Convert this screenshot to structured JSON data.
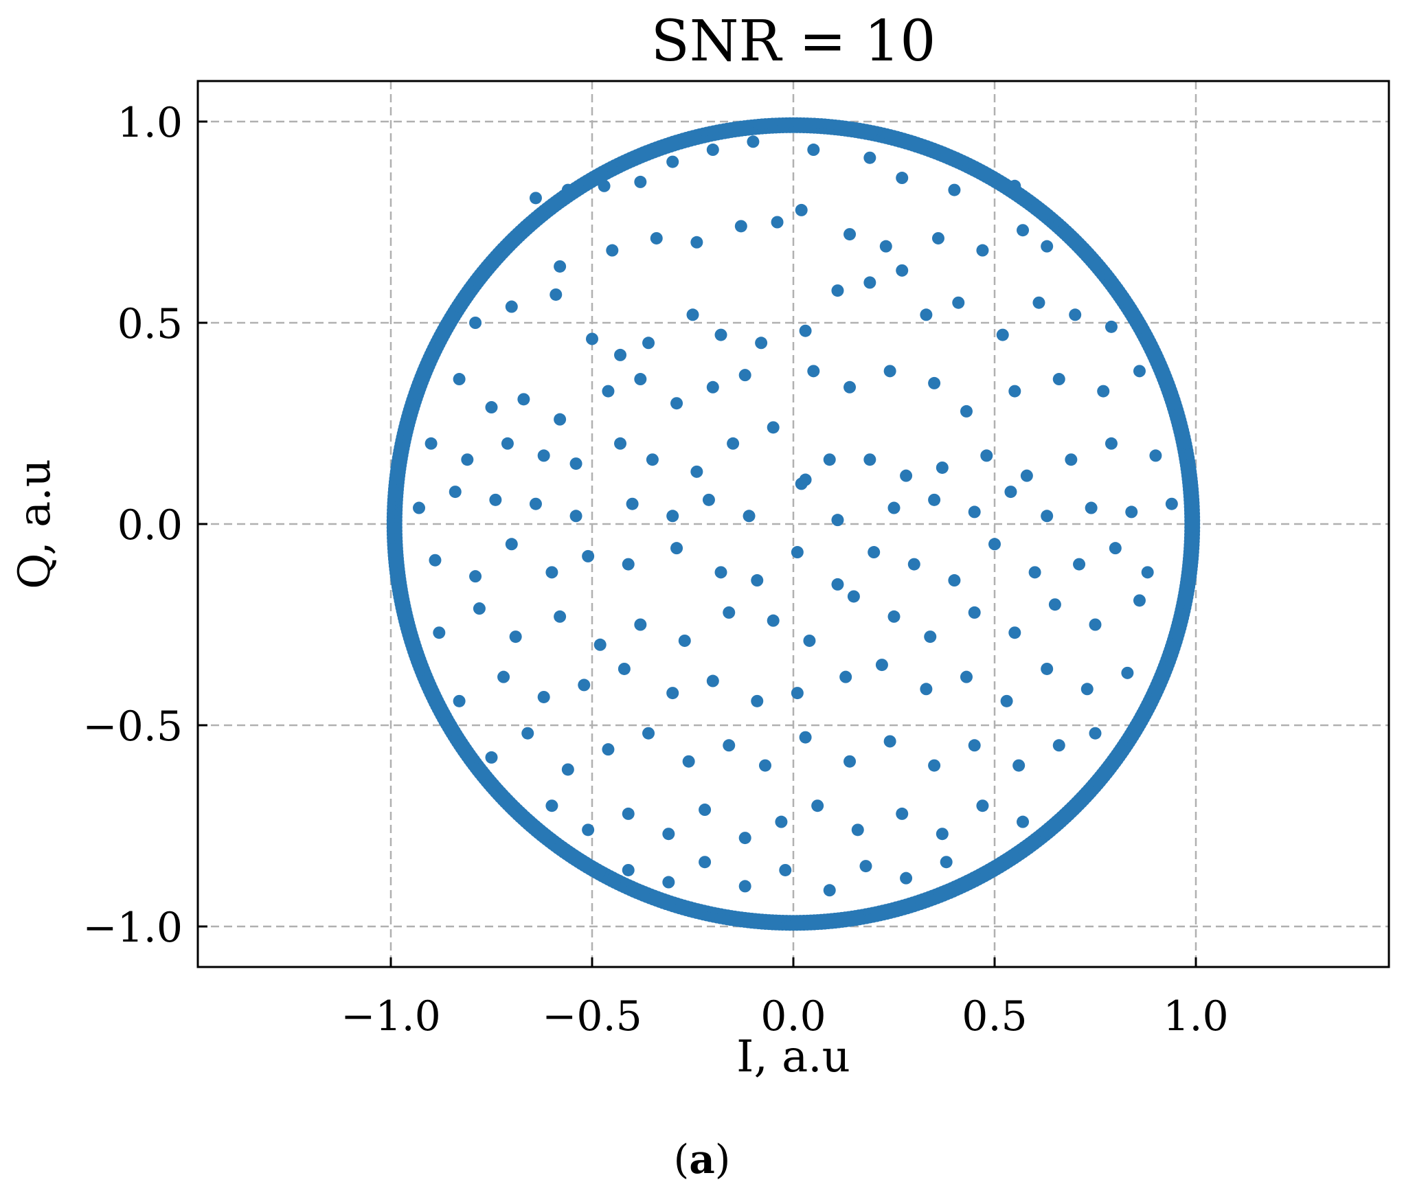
{
  "chart_data": {
    "type": "scatter",
    "title": "SNR = 10",
    "xlabel": "I, a.u",
    "ylabel": "Q, a.u",
    "xlim": [
      -1.47,
      1.47
    ],
    "ylim": [
      -1.1,
      1.1
    ],
    "xticks": [
      -1.0,
      -0.5,
      0.0,
      0.5,
      1.0
    ],
    "xtick_labels": [
      "−1.0",
      "−0.5",
      "0.0",
      "0.5",
      "1.0"
    ],
    "yticks": [
      -1.0,
      -0.5,
      0.0,
      0.5,
      1.0
    ],
    "ytick_labels": [
      "−1.0",
      "−0.5",
      "0.0",
      "0.5",
      "1.0"
    ],
    "grid": true,
    "grid_style": "dashed",
    "marker_color": "#2878b5",
    "series": [
      {
        "marker": "circle",
        "points": [
          [
            -0.64,
            0.81
          ],
          [
            -0.56,
            0.83
          ],
          [
            -0.47,
            0.84
          ],
          [
            -0.38,
            0.85
          ],
          [
            -0.3,
            0.9
          ],
          [
            -0.2,
            0.93
          ],
          [
            -0.1,
            0.95
          ],
          [
            0.05,
            0.93
          ],
          [
            0.19,
            0.91
          ],
          [
            0.27,
            0.86
          ],
          [
            0.4,
            0.83
          ],
          [
            0.55,
            0.84
          ],
          [
            -0.66,
            0.74
          ],
          [
            -0.58,
            0.64
          ],
          [
            -0.45,
            0.68
          ],
          [
            -0.34,
            0.71
          ],
          [
            -0.24,
            0.7
          ],
          [
            -0.13,
            0.74
          ],
          [
            -0.04,
            0.75
          ],
          [
            0.02,
            0.78
          ],
          [
            0.14,
            0.72
          ],
          [
            0.23,
            0.69
          ],
          [
            0.36,
            0.71
          ],
          [
            0.47,
            0.68
          ],
          [
            0.57,
            0.73
          ],
          [
            0.63,
            0.69
          ],
          [
            -0.79,
            0.5
          ],
          [
            -0.7,
            0.54
          ],
          [
            -0.59,
            0.57
          ],
          [
            -0.5,
            0.46
          ],
          [
            -0.43,
            0.42
          ],
          [
            -0.36,
            0.45
          ],
          [
            -0.25,
            0.52
          ],
          [
            -0.18,
            0.47
          ],
          [
            -0.08,
            0.45
          ],
          [
            0.03,
            0.48
          ],
          [
            0.11,
            0.58
          ],
          [
            0.19,
            0.6
          ],
          [
            0.27,
            0.63
          ],
          [
            0.33,
            0.52
          ],
          [
            0.41,
            0.55
          ],
          [
            0.52,
            0.47
          ],
          [
            0.61,
            0.55
          ],
          [
            0.7,
            0.52
          ],
          [
            0.79,
            0.49
          ],
          [
            -0.83,
            0.36
          ],
          [
            -0.75,
            0.29
          ],
          [
            -0.67,
            0.31
          ],
          [
            -0.58,
            0.26
          ],
          [
            -0.46,
            0.33
          ],
          [
            -0.38,
            0.36
          ],
          [
            -0.29,
            0.3
          ],
          [
            -0.2,
            0.34
          ],
          [
            -0.12,
            0.37
          ],
          [
            0.05,
            0.38
          ],
          [
            0.14,
            0.34
          ],
          [
            0.24,
            0.38
          ],
          [
            0.35,
            0.35
          ],
          [
            0.43,
            0.28
          ],
          [
            0.55,
            0.33
          ],
          [
            0.66,
            0.36
          ],
          [
            0.77,
            0.33
          ],
          [
            0.86,
            0.38
          ],
          [
            -0.9,
            0.2
          ],
          [
            -0.81,
            0.16
          ],
          [
            -0.71,
            0.2
          ],
          [
            -0.62,
            0.17
          ],
          [
            -0.54,
            0.15
          ],
          [
            -0.43,
            0.2
          ],
          [
            -0.35,
            0.16
          ],
          [
            -0.24,
            0.13
          ],
          [
            -0.15,
            0.2
          ],
          [
            -0.05,
            0.24
          ],
          [
            0.02,
            0.1
          ],
          [
            0.09,
            0.16
          ],
          [
            0.19,
            0.16
          ],
          [
            0.28,
            0.12
          ],
          [
            0.37,
            0.14
          ],
          [
            0.48,
            0.17
          ],
          [
            0.58,
            0.12
          ],
          [
            0.69,
            0.16
          ],
          [
            0.79,
            0.2
          ],
          [
            0.9,
            0.17
          ],
          [
            -0.93,
            0.04
          ],
          [
            -0.84,
            0.08
          ],
          [
            -0.74,
            0.06
          ],
          [
            -0.64,
            0.05
          ],
          [
            -0.54,
            0.02
          ],
          [
            -0.4,
            0.05
          ],
          [
            -0.3,
            0.02
          ],
          [
            -0.21,
            0.06
          ],
          [
            -0.11,
            0.02
          ],
          [
            0.03,
            0.11
          ],
          [
            0.11,
            0.01
          ],
          [
            0.25,
            0.04
          ],
          [
            0.35,
            0.06
          ],
          [
            0.45,
            0.03
          ],
          [
            0.54,
            0.08
          ],
          [
            0.63,
            0.02
          ],
          [
            0.74,
            0.04
          ],
          [
            0.84,
            0.03
          ],
          [
            0.94,
            0.05
          ],
          [
            -0.89,
            -0.09
          ],
          [
            -0.79,
            -0.13
          ],
          [
            -0.7,
            -0.05
          ],
          [
            -0.6,
            -0.12
          ],
          [
            -0.51,
            -0.08
          ],
          [
            -0.41,
            -0.1
          ],
          [
            -0.29,
            -0.06
          ],
          [
            -0.18,
            -0.12
          ],
          [
            -0.09,
            -0.14
          ],
          [
            0.01,
            -0.07
          ],
          [
            0.11,
            -0.15
          ],
          [
            0.2,
            -0.07
          ],
          [
            0.3,
            -0.1
          ],
          [
            0.4,
            -0.14
          ],
          [
            0.5,
            -0.05
          ],
          [
            0.6,
            -0.12
          ],
          [
            0.71,
            -0.1
          ],
          [
            0.8,
            -0.06
          ],
          [
            0.88,
            -0.12
          ],
          [
            -0.88,
            -0.27
          ],
          [
            -0.78,
            -0.21
          ],
          [
            -0.69,
            -0.28
          ],
          [
            -0.58,
            -0.23
          ],
          [
            -0.48,
            -0.3
          ],
          [
            -0.38,
            -0.25
          ],
          [
            -0.27,
            -0.29
          ],
          [
            -0.16,
            -0.22
          ],
          [
            -0.05,
            -0.24
          ],
          [
            0.04,
            -0.29
          ],
          [
            0.15,
            -0.18
          ],
          [
            0.25,
            -0.23
          ],
          [
            0.34,
            -0.28
          ],
          [
            0.45,
            -0.22
          ],
          [
            0.55,
            -0.27
          ],
          [
            0.65,
            -0.2
          ],
          [
            0.75,
            -0.25
          ],
          [
            0.86,
            -0.19
          ],
          [
            -0.83,
            -0.44
          ],
          [
            -0.72,
            -0.38
          ],
          [
            -0.62,
            -0.43
          ],
          [
            -0.52,
            -0.4
          ],
          [
            -0.42,
            -0.36
          ],
          [
            -0.3,
            -0.42
          ],
          [
            -0.2,
            -0.39
          ],
          [
            -0.09,
            -0.44
          ],
          [
            0.01,
            -0.42
          ],
          [
            0.13,
            -0.38
          ],
          [
            0.22,
            -0.35
          ],
          [
            0.33,
            -0.41
          ],
          [
            0.43,
            -0.38
          ],
          [
            0.53,
            -0.44
          ],
          [
            0.63,
            -0.36
          ],
          [
            0.73,
            -0.41
          ],
          [
            0.83,
            -0.37
          ],
          [
            -0.75,
            -0.58
          ],
          [
            -0.66,
            -0.52
          ],
          [
            -0.56,
            -0.61
          ],
          [
            -0.46,
            -0.56
          ],
          [
            -0.36,
            -0.52
          ],
          [
            -0.26,
            -0.59
          ],
          [
            -0.16,
            -0.55
          ],
          [
            -0.07,
            -0.6
          ],
          [
            0.03,
            -0.53
          ],
          [
            0.14,
            -0.59
          ],
          [
            0.24,
            -0.54
          ],
          [
            0.35,
            -0.6
          ],
          [
            0.45,
            -0.55
          ],
          [
            0.56,
            -0.6
          ],
          [
            0.66,
            -0.55
          ],
          [
            0.75,
            -0.52
          ],
          [
            -0.6,
            -0.7
          ],
          [
            -0.51,
            -0.76
          ],
          [
            -0.41,
            -0.72
          ],
          [
            -0.31,
            -0.77
          ],
          [
            -0.22,
            -0.71
          ],
          [
            -0.12,
            -0.78
          ],
          [
            -0.03,
            -0.74
          ],
          [
            0.06,
            -0.7
          ],
          [
            0.16,
            -0.76
          ],
          [
            0.27,
            -0.72
          ],
          [
            0.37,
            -0.77
          ],
          [
            0.47,
            -0.7
          ],
          [
            0.57,
            -0.74
          ],
          [
            -0.41,
            -0.86
          ],
          [
            -0.31,
            -0.89
          ],
          [
            -0.22,
            -0.84
          ],
          [
            -0.12,
            -0.9
          ],
          [
            -0.02,
            -0.86
          ],
          [
            0.09,
            -0.91
          ],
          [
            0.18,
            -0.85
          ],
          [
            0.28,
            -0.88
          ],
          [
            0.38,
            -0.84
          ]
        ]
      }
    ],
    "ring_band": {
      "radius": 1.0,
      "samples": 720
    },
    "caption": {
      "open": "(",
      "bold": "a",
      "close": ")"
    }
  }
}
